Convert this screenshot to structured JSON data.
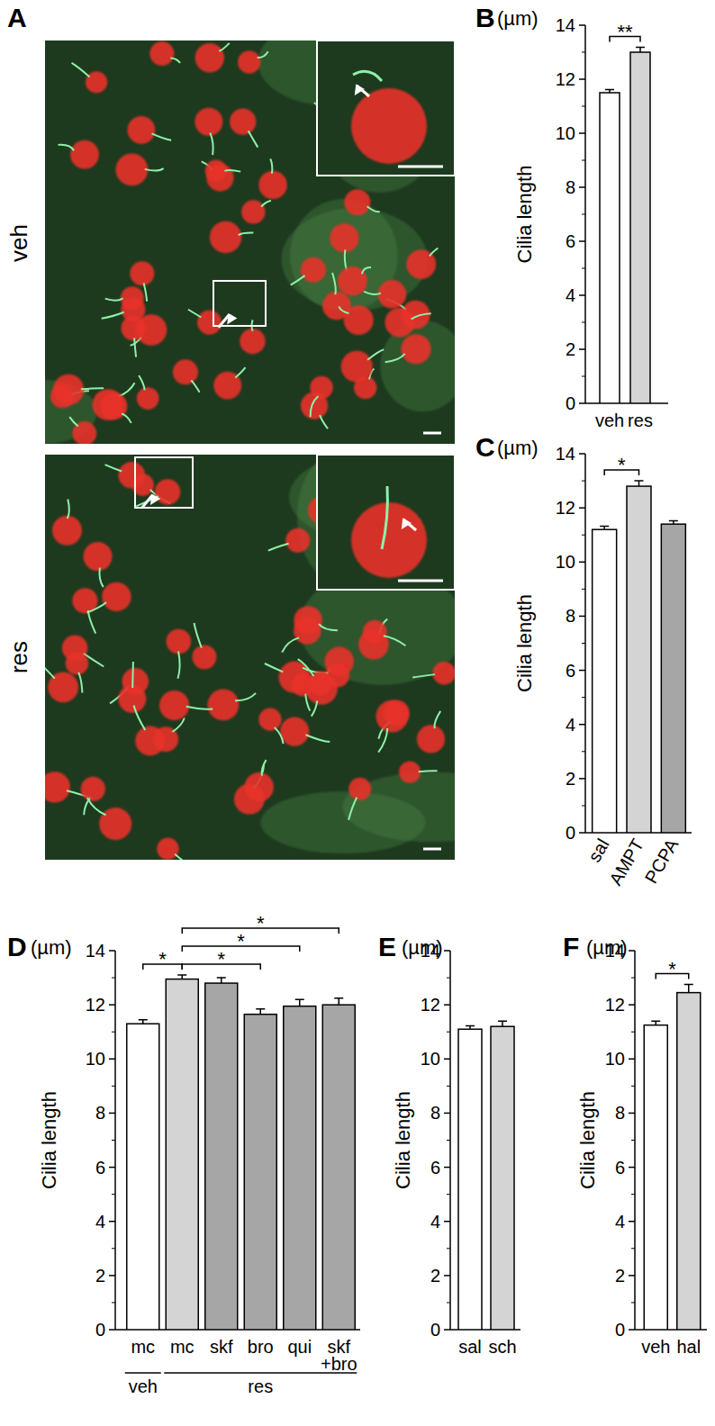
{
  "image_panel": {
    "title": "A",
    "labels": [
      "veh",
      "res"
    ]
  },
  "chart_data": [
    {
      "type": "bar",
      "title": "B",
      "y_unit": "(µm)",
      "y_label": "Cilia length",
      "categories": [
        "veh",
        "res"
      ],
      "values": [
        11.5,
        13.0
      ],
      "errors": [
        0.12,
        0.18
      ],
      "colors": [
        "#ffffff",
        "#d4d4d4"
      ],
      "ylim": [
        0,
        14
      ],
      "yticks": [
        0,
        2,
        4,
        6,
        8,
        10,
        12,
        14
      ],
      "annotations": [
        {
          "from": 0,
          "to": 1,
          "label": "**"
        }
      ]
    },
    {
      "type": "bar",
      "title": "C",
      "y_unit": "(µm)",
      "y_label": "Cilia length",
      "categories": [
        "sal",
        "AMPT",
        "PCPA"
      ],
      "values": [
        11.2,
        12.8,
        11.4
      ],
      "errors": [
        0.12,
        0.2,
        0.12
      ],
      "colors": [
        "#ffffff",
        "#d4d4d4",
        "#a6a6a6"
      ],
      "ylim": [
        0,
        14
      ],
      "yticks": [
        0,
        2,
        4,
        6,
        8,
        10,
        12,
        14
      ],
      "annotations": [
        {
          "from": 0,
          "to": 1,
          "label": "*"
        }
      ]
    },
    {
      "type": "bar",
      "title": "D",
      "y_unit": "(µm)",
      "y_label": "Cilia length",
      "categories": [
        "mc",
        "mc",
        "skf",
        "bro",
        "qui",
        "skf\n+bro"
      ],
      "values": [
        11.3,
        12.95,
        12.8,
        11.65,
        11.95,
        12.0
      ],
      "errors": [
        0.15,
        0.15,
        0.2,
        0.2,
        0.25,
        0.25
      ],
      "colors": [
        "#ffffff",
        "#d4d4d4",
        "#a6a6a6",
        "#a6a6a6",
        "#a6a6a6",
        "#a6a6a6"
      ],
      "ylim": [
        0,
        14
      ],
      "yticks": [
        0,
        2,
        4,
        6,
        8,
        10,
        12,
        14
      ],
      "category_groups": [
        {
          "label": "veh",
          "from": 0,
          "to": 0
        },
        {
          "label": "res",
          "from": 1,
          "to": 5
        }
      ],
      "annotations": [
        {
          "from": 0,
          "to": 1,
          "label": "*"
        },
        {
          "from": 1,
          "to": 3,
          "label": "*"
        },
        {
          "from": 1,
          "to": 4,
          "label": "*"
        },
        {
          "from": 1,
          "to": 5,
          "label": "*"
        }
      ]
    },
    {
      "type": "bar",
      "title": "E",
      "y_unit": "(µm)",
      "y_label": "Cilia length",
      "categories": [
        "sal",
        "sch"
      ],
      "values": [
        11.1,
        11.2
      ],
      "errors": [
        0.12,
        0.2
      ],
      "colors": [
        "#ffffff",
        "#d4d4d4"
      ],
      "ylim": [
        0,
        14
      ],
      "yticks": [
        0,
        2,
        4,
        6,
        8,
        10,
        12,
        14
      ],
      "annotations": []
    },
    {
      "type": "bar",
      "title": "F",
      "y_unit": "(µm)",
      "y_label": "Cilia length",
      "categories": [
        "veh",
        "hal"
      ],
      "values": [
        11.25,
        12.45
      ],
      "errors": [
        0.15,
        0.3
      ],
      "colors": [
        "#ffffff",
        "#d4d4d4"
      ],
      "ylim": [
        0,
        14
      ],
      "yticks": [
        0,
        2,
        4,
        6,
        8,
        10,
        12,
        14
      ],
      "annotations": [
        {
          "from": 0,
          "to": 1,
          "label": "*"
        }
      ]
    }
  ]
}
